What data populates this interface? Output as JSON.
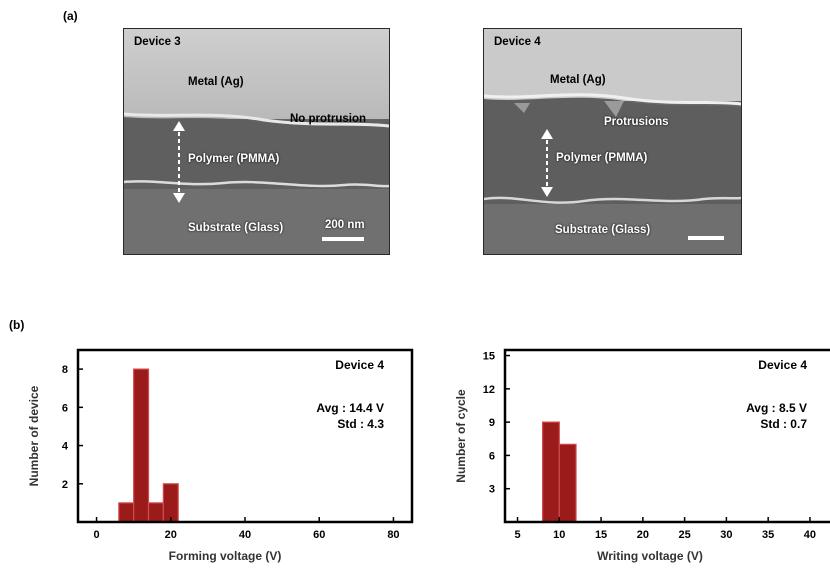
{
  "panel_a": {
    "letter": "(a)",
    "images": [
      {
        "device": "Device 3",
        "labels": {
          "metal": "Metal (Ag)",
          "feature": "No protrusion",
          "polymer": "Polymer (PMMA)",
          "substrate": "Substrate (Glass)",
          "scale": "200 nm"
        }
      },
      {
        "device": "Device 4",
        "labels": {
          "metal": "Metal (Ag)",
          "feature": "Protrusions",
          "polymer": "Polymer (PMMA)",
          "substrate": "Substrate (Glass)",
          "scale": ""
        }
      }
    ]
  },
  "panel_b": {
    "letter": "(b)"
  },
  "chart_data": [
    {
      "type": "bar",
      "device": "Device 4",
      "stats": [
        "Avg : 14.4 V",
        "Std : 4.3"
      ],
      "xlabel": "Forming voltage (V)",
      "ylabel": "Number of device",
      "xlim": [
        -5,
        85
      ],
      "ylim": [
        0,
        9
      ],
      "xticks": [
        0,
        20,
        40,
        60,
        80
      ],
      "yticks": [
        2,
        4,
        6,
        8
      ],
      "bin_width": 4,
      "x": [
        8,
        12,
        16,
        20
      ],
      "values": [
        1,
        8,
        1,
        2
      ],
      "bar_color": "#9b1b1b",
      "bar_edge": "#d44a4a"
    },
    {
      "type": "bar",
      "device": "Device 4",
      "stats": [
        "Avg : 8.5 V",
        "Std : 0.7"
      ],
      "xlabel": "Writing voltage (V)",
      "ylabel": "Number of cycle",
      "xlim": [
        3.5,
        43
      ],
      "ylim": [
        0,
        15.5
      ],
      "xticks": [
        5,
        10,
        15,
        20,
        25,
        30,
        35,
        40
      ],
      "yticks": [
        3,
        6,
        9,
        12,
        15
      ],
      "bin_width": 2,
      "x": [
        9,
        11
      ],
      "values": [
        9,
        7
      ],
      "bar_color": "#9b1b1b",
      "bar_edge": "#d44a4a"
    }
  ]
}
